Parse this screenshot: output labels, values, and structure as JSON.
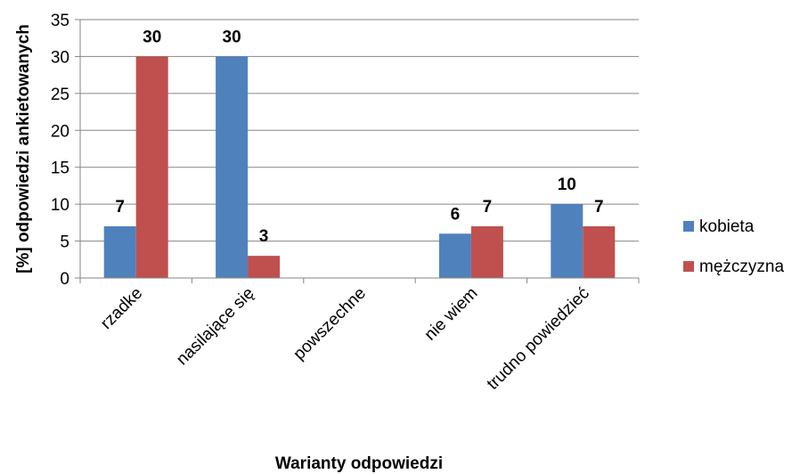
{
  "chart_data": {
    "type": "bar",
    "categories": [
      "rzadke",
      "nasilające się",
      "powszechne",
      "nie wiem",
      "trudno powiedzieć"
    ],
    "series": [
      {
        "name": "kobieta",
        "values": [
          7,
          30,
          null,
          6,
          10
        ],
        "color": "#4F81BD"
      },
      {
        "name": "mężczyzna",
        "values": [
          30,
          3,
          null,
          7,
          7
        ],
        "color": "#C0504D"
      }
    ],
    "title": "",
    "xlabel": "Warianty odpowiedzi",
    "ylabel": "[%] odpowiedzi ankietowanych",
    "ylim": [
      0,
      35
    ],
    "yticks": [
      0,
      5,
      10,
      15,
      20,
      25,
      30,
      35
    ],
    "grid": true,
    "legend_position": "right",
    "data_labels": true
  }
}
